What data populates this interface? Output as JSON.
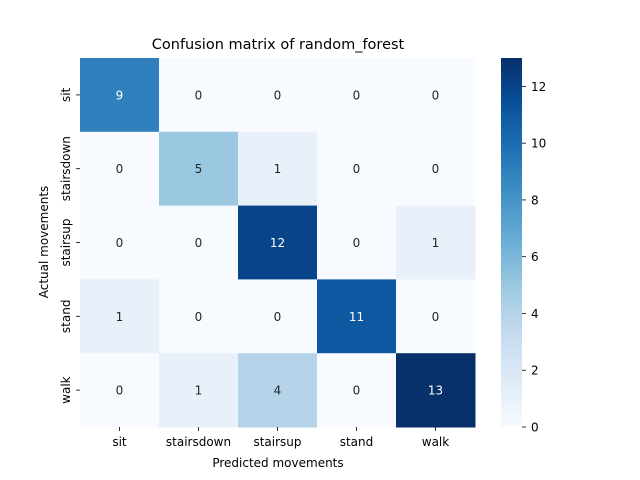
{
  "chart_data": {
    "type": "heatmap",
    "title": "Confusion matrix of random_forest",
    "xlabel": "Predicted movements",
    "ylabel": "Actual movements",
    "x_categories": [
      "sit",
      "stairsdown",
      "stairsup",
      "stand",
      "walk"
    ],
    "y_categories": [
      "sit",
      "stairsdown",
      "stairsup",
      "stand",
      "walk"
    ],
    "values": [
      [
        9,
        0,
        0,
        0,
        0
      ],
      [
        0,
        5,
        1,
        0,
        0
      ],
      [
        0,
        0,
        12,
        0,
        1
      ],
      [
        1,
        0,
        0,
        11,
        0
      ],
      [
        0,
        1,
        4,
        0,
        13
      ]
    ],
    "colormap": "Blues",
    "colorbar": {
      "min": 0,
      "max": 13,
      "ticks": [
        "0",
        "2",
        "4",
        "6",
        "8",
        "10",
        "12"
      ]
    },
    "legend": "none"
  }
}
